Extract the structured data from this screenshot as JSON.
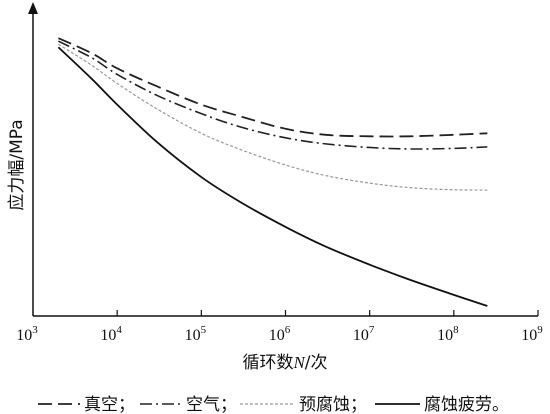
{
  "chart_data": {
    "type": "line",
    "title": "",
    "ylabel": "应力幅/MPa",
    "xlabel_prefix": "循环数",
    "xlabel_var": "N",
    "xlabel_suffix": "/次",
    "x_scale": "log",
    "xlim": [
      1000,
      1000000000
    ],
    "x_ticks": [
      {
        "base": "10",
        "exp": "3"
      },
      {
        "base": "10",
        "exp": "4"
      },
      {
        "base": "10",
        "exp": "5"
      },
      {
        "base": "10",
        "exp": "6"
      },
      {
        "base": "10",
        "exp": "7"
      },
      {
        "base": "10",
        "exp": "8"
      },
      {
        "base": "10",
        "exp": "9"
      }
    ],
    "y_ticks_shown": false,
    "ylim": [
      0,
      100
    ],
    "grid": false,
    "legend_position": "bottom",
    "series": [
      {
        "name": "真空",
        "style": "dashed",
        "color": "#222222",
        "x": [
          2000,
          5000,
          10000,
          30000,
          100000,
          300000,
          1000000,
          3000000,
          10000000,
          30000000,
          100000000,
          250000000
        ],
        "y": [
          92,
          87,
          82,
          76,
          70,
          66,
          62,
          60,
          59.5,
          59.5,
          60,
          60.5
        ]
      },
      {
        "name": "空气",
        "style": "dashdot",
        "color": "#222222",
        "x": [
          2000,
          5000,
          10000,
          30000,
          100000,
          300000,
          1000000,
          3000000,
          10000000,
          30000000,
          100000000,
          250000000
        ],
        "y": [
          91,
          85.5,
          80,
          73,
          67,
          62.5,
          59,
          57,
          55.8,
          55.3,
          55.5,
          56
        ]
      },
      {
        "name": "预腐蚀",
        "style": "dotted",
        "color": "#999999",
        "x": [
          2000,
          5000,
          10000,
          30000,
          100000,
          300000,
          1000000,
          3000000,
          10000000,
          30000000,
          100000000,
          250000000
        ],
        "y": [
          90,
          83,
          77,
          68.5,
          60.5,
          55,
          50,
          46.5,
          44,
          42.5,
          41.8,
          41.7
        ]
      },
      {
        "name": "腐蚀疲劳",
        "style": "solid",
        "color": "#111111",
        "x": [
          2000,
          5000,
          10000,
          30000,
          100000,
          300000,
          1000000,
          3000000,
          10000000,
          30000000,
          100000000,
          250000000
        ],
        "y": [
          89,
          78.5,
          70,
          57.5,
          46,
          37.5,
          29.5,
          23,
          17,
          12,
          7,
          3.3
        ]
      }
    ],
    "legend_separator": "；",
    "legend_terminator": "。"
  }
}
